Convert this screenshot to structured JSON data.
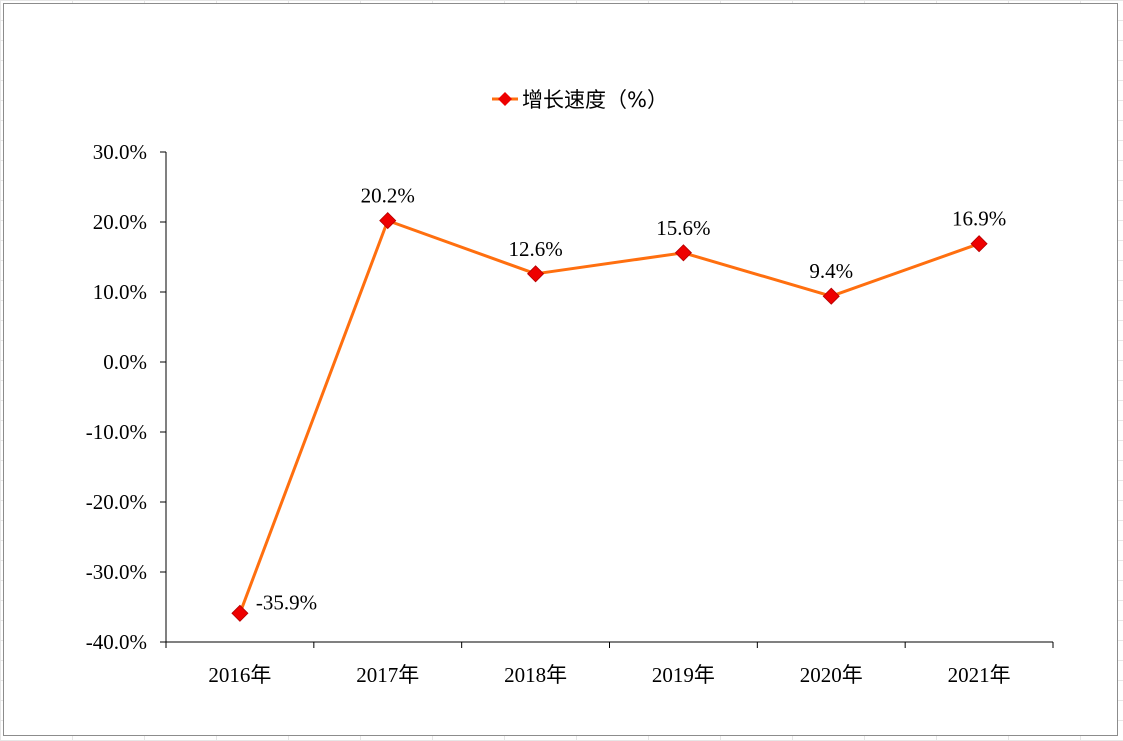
{
  "chart_data": {
    "type": "line",
    "categories": [
      "2016年",
      "2017年",
      "2018年",
      "2019年",
      "2020年",
      "2021年"
    ],
    "series": [
      {
        "name": "增长速度（%）",
        "values": [
          -35.9,
          20.2,
          12.6,
          15.6,
          9.4,
          16.9
        ],
        "labels": [
          "-35.9%",
          "20.2%",
          "12.6%",
          "15.6%",
          "9.4%",
          "16.9%"
        ],
        "line_color": "#ff6f0f",
        "marker_color": "#ee0000",
        "marker": "diamond"
      }
    ],
    "yticks": [
      "30.0%",
      "20.0%",
      "10.0%",
      "0.0%",
      "-10.0%",
      "-20.0%",
      "-30.0%",
      "-40.0%"
    ],
    "ytick_values": [
      30,
      20,
      10,
      0,
      -10,
      -20,
      -30,
      -40
    ],
    "ylim": [
      -40,
      30
    ],
    "title": "",
    "xlabel": "",
    "ylabel": "",
    "grid": false,
    "legend_position": "top-center"
  }
}
